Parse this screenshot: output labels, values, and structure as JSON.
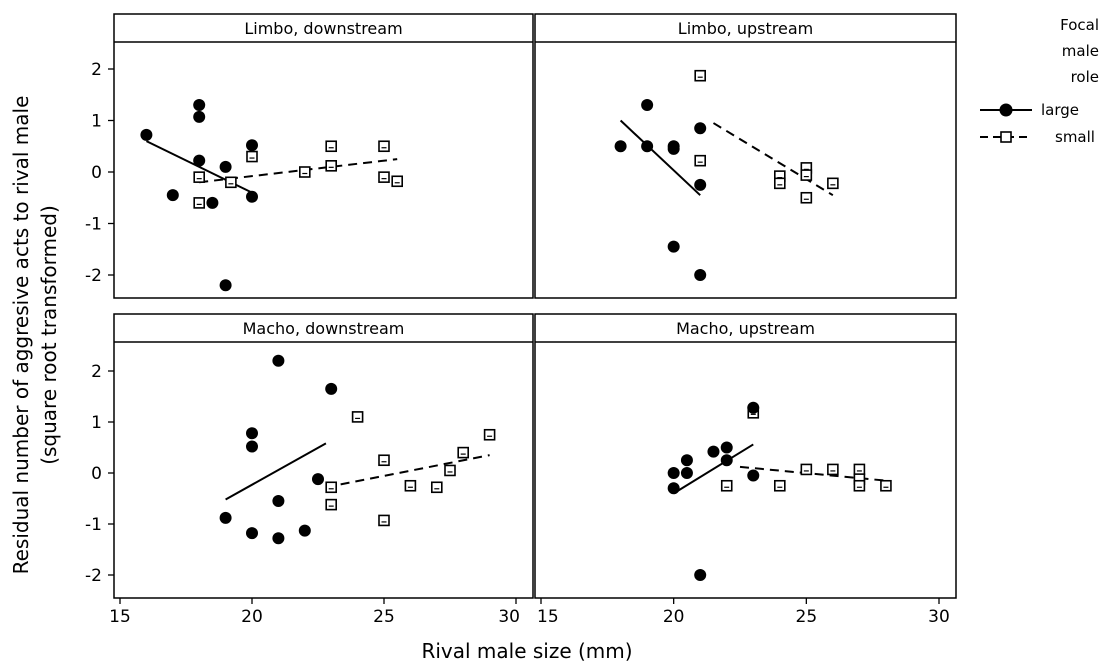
{
  "chart_data": {
    "type": "scatter",
    "xlabel": "Rival male size (mm)",
    "ylabel_line1": "Residual number of aggresive acts to rival male",
    "ylabel_line2": "(square root transformed)",
    "xlim": [
      15,
      30
    ],
    "ylim": [
      -2.5,
      2.5
    ],
    "xticks": [
      15,
      20,
      25,
      30
    ],
    "yticks": [
      -2,
      -1,
      0,
      1,
      2
    ],
    "legend": {
      "title_lines": [
        "Focal",
        "male",
        "role"
      ],
      "entries": [
        {
          "label": "large",
          "marker": "filled-circle",
          "line": "solid"
        },
        {
          "label": "small",
          "marker": "open-square",
          "line": "dashed"
        }
      ],
      "position": "right"
    },
    "panels": [
      {
        "title": "Limbo, downstream",
        "large": {
          "points": [
            [
              16,
              0.72
            ],
            [
              17,
              -0.45
            ],
            [
              18,
              1.3
            ],
            [
              18,
              1.07
            ],
            [
              18,
              0.22
            ],
            [
              18.5,
              -0.6
            ],
            [
              19,
              0.1
            ],
            [
              19,
              -2.2
            ],
            [
              20,
              0.52
            ],
            [
              20,
              -0.48
            ]
          ],
          "fit": [
            [
              16,
              0.6
            ],
            [
              20,
              -0.4
            ]
          ]
        },
        "small": {
          "points": [
            [
              18,
              -0.1
            ],
            [
              18,
              -0.6
            ],
            [
              19.2,
              -0.2
            ],
            [
              20,
              0.3
            ],
            [
              22,
              0
            ],
            [
              23,
              0.5
            ],
            [
              23,
              0.12
            ],
            [
              25,
              0.5
            ],
            [
              25,
              -0.1
            ],
            [
              25.5,
              -0.18
            ]
          ],
          "fit": [
            [
              18,
              -0.2
            ],
            [
              25.5,
              0.25
            ]
          ]
        }
      },
      {
        "title": "Limbo, upstream",
        "large": {
          "points": [
            [
              18,
              0.5
            ],
            [
              19,
              1.3
            ],
            [
              19,
              0.5
            ],
            [
              20,
              0.5
            ],
            [
              20,
              0.45
            ],
            [
              20,
              -1.45
            ],
            [
              21,
              0.85
            ],
            [
              21,
              -0.25
            ],
            [
              21,
              -2.0
            ]
          ],
          "fit": [
            [
              18,
              1.0
            ],
            [
              21,
              -0.45
            ]
          ]
        },
        "small": {
          "points": [
            [
              21,
              1.87
            ],
            [
              21,
              0.22
            ],
            [
              24,
              -0.08
            ],
            [
              24,
              -0.22
            ],
            [
              25,
              0.08
            ],
            [
              25,
              -0.06
            ],
            [
              25,
              -0.5
            ],
            [
              26,
              -0.22
            ]
          ],
          "fit": [
            [
              21.5,
              0.95
            ],
            [
              26,
              -0.45
            ]
          ]
        }
      },
      {
        "title": "Macho, downstream",
        "large": {
          "points": [
            [
              19,
              -0.88
            ],
            [
              20,
              0.78
            ],
            [
              20,
              0.52
            ],
            [
              20,
              -1.18
            ],
            [
              21,
              2.2
            ],
            [
              21,
              -0.55
            ],
            [
              21,
              -1.28
            ],
            [
              22,
              -1.13
            ],
            [
              22.5,
              -0.12
            ],
            [
              23,
              1.65
            ]
          ],
          "fit": [
            [
              19,
              -0.52
            ],
            [
              22.8,
              0.58
            ]
          ]
        },
        "small": {
          "points": [
            [
              23,
              -0.28
            ],
            [
              23,
              -0.62
            ],
            [
              24,
              1.1
            ],
            [
              25,
              0.25
            ],
            [
              25,
              -0.93
            ],
            [
              26,
              -0.25
            ],
            [
              27,
              -0.28
            ],
            [
              27.5,
              0.05
            ],
            [
              28,
              0.4
            ],
            [
              29,
              0.75
            ]
          ],
          "fit": [
            [
              22.8,
              -0.28
            ],
            [
              29,
              0.35
            ]
          ]
        }
      },
      {
        "title": "Macho, upstream",
        "large": {
          "points": [
            [
              20,
              0.0
            ],
            [
              20,
              -0.3
            ],
            [
              20.5,
              0.0
            ],
            [
              20.5,
              0.25
            ],
            [
              21,
              -2.0
            ],
            [
              21.5,
              0.42
            ],
            [
              22,
              0.5
            ],
            [
              22,
              0.25
            ],
            [
              23,
              1.28
            ],
            [
              23,
              -0.05
            ]
          ],
          "fit": [
            [
              20,
              -0.4
            ],
            [
              23,
              0.56
            ]
          ]
        },
        "small": {
          "points": [
            [
              22,
              -0.25
            ],
            [
              23,
              1.18
            ],
            [
              24,
              -0.25
            ],
            [
              25,
              0.07
            ],
            [
              26,
              0.07
            ],
            [
              27,
              0.07
            ],
            [
              27,
              -0.12
            ],
            [
              27,
              -0.25
            ],
            [
              28,
              -0.25
            ]
          ],
          "fit": [
            [
              22.5,
              0.12
            ],
            [
              28,
              -0.15
            ]
          ]
        }
      }
    ]
  }
}
